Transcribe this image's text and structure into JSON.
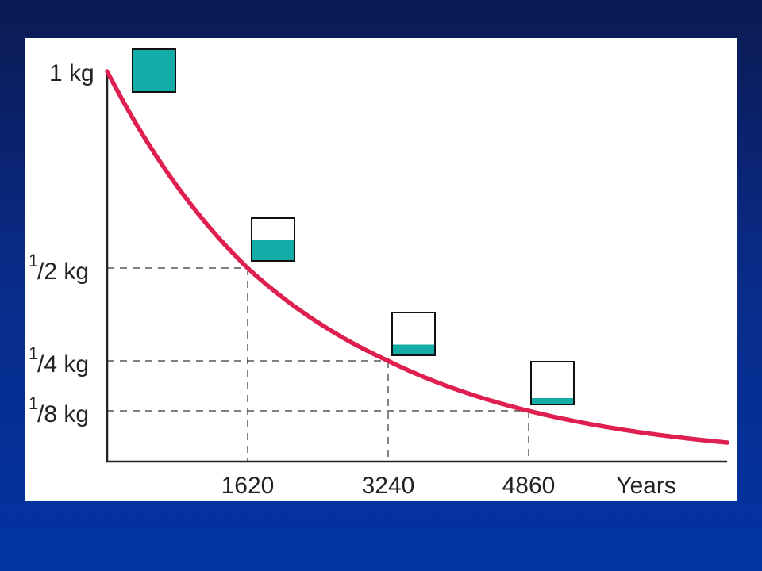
{
  "chart_data": {
    "type": "line",
    "title": "",
    "xlabel": "Years",
    "ylabel": "",
    "x_ticks": [
      1620,
      3240,
      4860
    ],
    "x_tick_labels": [
      "1620",
      "3240",
      "4860"
    ],
    "y_ticks": [
      {
        "value": 1,
        "numerator": "",
        "label": "1 kg"
      },
      {
        "value": 0.5,
        "numerator": "1",
        "label": "/2 kg"
      },
      {
        "value": 0.25,
        "numerator": "1",
        "label": "/4 kg"
      },
      {
        "value": 0.125,
        "numerator": "1",
        "label": "/8 kg"
      }
    ],
    "half_life_years": 1620,
    "series": [
      {
        "x": [
          0,
          1620,
          3240,
          4860,
          7150
        ],
        "y": [
          1,
          0.5,
          0.25,
          0.125,
          0.047
        ]
      }
    ],
    "remaining_fraction_boxes": [
      {
        "x": 500,
        "fill": 1.0
      },
      {
        "x": 1950,
        "fill": 0.5
      },
      {
        "x": 3560,
        "fill": 0.25
      },
      {
        "x": 5150,
        "fill": 0.125
      }
    ],
    "reference_lines": "dashed",
    "colors": {
      "curve": "#de1f4f",
      "box_fill": "#13aca7",
      "axis": "#222222"
    }
  }
}
